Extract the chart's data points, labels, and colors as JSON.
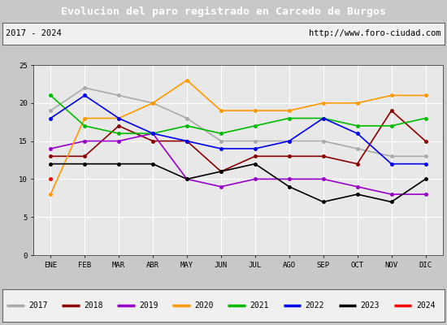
{
  "title": "Evolucion del paro registrado en Carcedo de Burgos",
  "subtitle_left": "2017 - 2024",
  "subtitle_right": "http://www.foro-ciudad.com",
  "months": [
    "ENE",
    "FEB",
    "MAR",
    "ABR",
    "MAY",
    "JUN",
    "JUL",
    "AGO",
    "SEP",
    "OCT",
    "NOV",
    "DIC"
  ],
  "ylim": [
    0,
    25
  ],
  "yticks": [
    0,
    5,
    10,
    15,
    20,
    25
  ],
  "year_order": [
    "2017",
    "2018",
    "2019",
    "2020",
    "2021",
    "2022",
    "2023",
    "2024"
  ],
  "series": {
    "2017": {
      "color": "#aaaaaa",
      "values": [
        19,
        22,
        21,
        20,
        18,
        15,
        15,
        15,
        15,
        14,
        13,
        13
      ]
    },
    "2018": {
      "color": "#8b0000",
      "values": [
        13,
        13,
        17,
        15,
        15,
        11,
        13,
        13,
        13,
        12,
        19,
        15
      ]
    },
    "2019": {
      "color": "#9900cc",
      "values": [
        14,
        15,
        15,
        16,
        10,
        9,
        10,
        10,
        10,
        9,
        8,
        8
      ]
    },
    "2020": {
      "color": "#ff9900",
      "values": [
        8,
        18,
        18,
        20,
        23,
        19,
        19,
        19,
        20,
        20,
        21,
        21
      ]
    },
    "2021": {
      "color": "#00bb00",
      "values": [
        21,
        17,
        16,
        16,
        17,
        16,
        17,
        18,
        18,
        17,
        17,
        18
      ]
    },
    "2022": {
      "color": "#0000ee",
      "values": [
        18,
        21,
        18,
        16,
        15,
        14,
        14,
        15,
        18,
        16,
        12,
        12
      ]
    },
    "2023": {
      "color": "#000000",
      "values": [
        12,
        12,
        12,
        12,
        10,
        11,
        12,
        9,
        7,
        8,
        7,
        10
      ]
    },
    "2024": {
      "color": "#ff0000",
      "values": [
        10,
        null,
        null,
        null,
        null,
        null,
        null,
        null,
        null,
        null,
        null,
        null
      ]
    }
  },
  "title_bg": "#5b8dd9",
  "title_fg": "#ffffff",
  "subtitle_bg": "#f0f0f0",
  "plot_bg": "#e8e8e8",
  "legend_bg": "#f0f0f0",
  "fig_bg": "#c8c8c8",
  "grid_color": "#ffffff"
}
